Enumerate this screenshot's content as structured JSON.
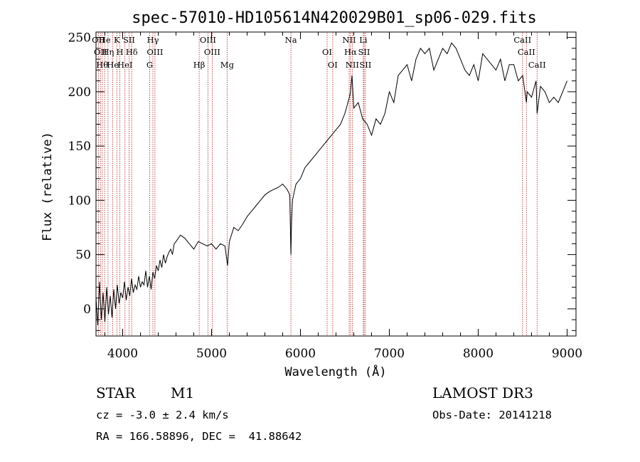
{
  "chart_data": {
    "type": "line",
    "title": "spec-57010-HD105614N420029B01_sp06-029.fits",
    "xlabel": "Wavelength (Å)",
    "ylabel": "Flux (relative)",
    "xlim": [
      3700,
      9100
    ],
    "ylim": [
      -25,
      255
    ],
    "x_ticks": [
      4000,
      5000,
      6000,
      7000,
      8000,
      9000
    ],
    "y_ticks": [
      0,
      50,
      100,
      150,
      200,
      250
    ],
    "grid": false,
    "series": [
      {
        "x": [
          3700,
          3720,
          3740,
          3760,
          3780,
          3800,
          3820,
          3840,
          3860,
          3880,
          3900,
          3920,
          3940,
          3960,
          3980,
          4000,
          4020,
          4040,
          4060,
          4080,
          4100,
          4120,
          4140,
          4160,
          4180,
          4200,
          4220,
          4240,
          4260,
          4280,
          4300,
          4320,
          4340,
          4360,
          4380,
          4400,
          4420,
          4440,
          4460,
          4480,
          4500,
          4520,
          4540,
          4560,
          4580,
          4600,
          4650,
          4700,
          4750,
          4800,
          4850,
          4900,
          4950,
          5000,
          5050,
          5100,
          5150,
          5180,
          5200,
          5250,
          5300,
          5350,
          5400,
          5450,
          5500,
          5550,
          5600,
          5650,
          5700,
          5750,
          5800,
          5850,
          5880,
          5893,
          5900,
          5910,
          5930,
          5950,
          6000,
          6050,
          6100,
          6150,
          6200,
          6250,
          6300,
          6350,
          6400,
          6450,
          6500,
          6550,
          6563,
          6580,
          6600,
          6650,
          6700,
          6750,
          6800,
          6850,
          6900,
          6950,
          7000,
          7050,
          7100,
          7150,
          7200,
          7250,
          7300,
          7350,
          7400,
          7450,
          7500,
          7550,
          7600,
          7650,
          7700,
          7750,
          7800,
          7850,
          7900,
          7950,
          8000,
          8050,
          8100,
          8150,
          8200,
          8250,
          8300,
          8350,
          8400,
          8450,
          8500,
          8542,
          8550,
          8600,
          8650,
          8662,
          8700,
          8750,
          8800,
          8850,
          8900,
          8950,
          9000
        ],
        "y": [
          10,
          -15,
          25,
          -10,
          15,
          -12,
          20,
          -5,
          12,
          -8,
          18,
          0,
          22,
          5,
          15,
          10,
          25,
          8,
          20,
          12,
          28,
          15,
          22,
          18,
          30,
          20,
          25,
          22,
          35,
          20,
          30,
          18,
          34,
          28,
          40,
          35,
          45,
          38,
          50,
          42,
          48,
          52,
          55,
          50,
          60,
          62,
          68,
          65,
          60,
          55,
          62,
          60,
          58,
          60,
          55,
          60,
          58,
          40,
          62,
          75,
          72,
          78,
          85,
          90,
          95,
          100,
          105,
          108,
          110,
          112,
          115,
          110,
          105,
          50,
          80,
          100,
          108,
          115,
          120,
          130,
          135,
          140,
          145,
          150,
          155,
          160,
          165,
          170,
          180,
          195,
          200,
          215,
          185,
          190,
          175,
          170,
          160,
          175,
          170,
          180,
          200,
          190,
          215,
          220,
          225,
          210,
          230,
          240,
          235,
          240,
          220,
          230,
          240,
          235,
          245,
          240,
          230,
          220,
          215,
          225,
          210,
          235,
          230,
          225,
          220,
          230,
          210,
          225,
          225,
          210,
          215,
          190,
          200,
          195,
          210,
          180,
          205,
          200,
          190,
          195,
          190,
          200,
          210
        ],
        "color": "#000000"
      }
    ],
    "lines": [
      {
        "wavelength": 3727,
        "label": "OII"
      },
      {
        "wavelength": 3750,
        "label": "OII"
      },
      {
        "wavelength": 3770,
        "label": "Hθ"
      },
      {
        "wavelength": 3798,
        "label": "He"
      },
      {
        "wavelength": 3835,
        "label": "Hη"
      },
      {
        "wavelength": 3889,
        "label": "He"
      },
      {
        "wavelength": 3934,
        "label": "K"
      },
      {
        "wavelength": 3968,
        "label": "H"
      },
      {
        "wavelength": 4026,
        "label": "HeI"
      },
      {
        "wavelength": 4072,
        "label": "SII"
      },
      {
        "wavelength": 4102,
        "label": "Hδ"
      },
      {
        "wavelength": 4304,
        "label": "G"
      },
      {
        "wavelength": 4340,
        "label": "Hγ"
      },
      {
        "wavelength": 4363,
        "label": "OIII"
      },
      {
        "wavelength": 4861,
        "label": "Hβ"
      },
      {
        "wavelength": 4959,
        "label": "OIII"
      },
      {
        "wavelength": 5007,
        "label": "OIII"
      },
      {
        "wavelength": 5175,
        "label": "Mg"
      },
      {
        "wavelength": 5893,
        "label": "Na"
      },
      {
        "wavelength": 6300,
        "label": "OI"
      },
      {
        "wavelength": 6363,
        "label": "OI"
      },
      {
        "wavelength": 6548,
        "label": "NII"
      },
      {
        "wavelength": 6563,
        "label": "Hα"
      },
      {
        "wavelength": 6583,
        "label": "NII"
      },
      {
        "wavelength": 6707,
        "label": "Li"
      },
      {
        "wavelength": 6716,
        "label": "SII"
      },
      {
        "wavelength": 6731,
        "label": "SII"
      },
      {
        "wavelength": 8498,
        "label": "CaII"
      },
      {
        "wavelength": 8542,
        "label": "CaII"
      },
      {
        "wavelength": 8662,
        "label": "CaII"
      }
    ]
  },
  "info": {
    "object_type": "STAR",
    "subclass": "M1",
    "survey": "LAMOST DR3",
    "cz": "cz = -3.0 ± 2.4 km/s",
    "obs_date": "Obs-Date: 20141218",
    "coords": "RA = 166.58896, DEC =  41.88642"
  }
}
